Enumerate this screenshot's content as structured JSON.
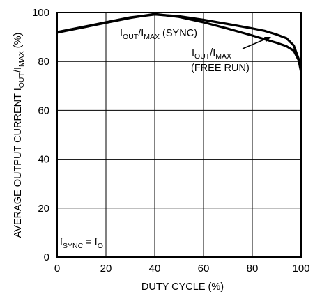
{
  "chart_data": {
    "type": "line",
    "xlabel": "DUTY CYCLE (%)",
    "ylabel": {
      "prefix": "AVERAGE OUTPUT CURRENT I",
      "sub1": "OUT",
      "mid": "/I",
      "sub2": "MAX",
      "suffix": " (%)"
    },
    "xlim": [
      0,
      100
    ],
    "ylim": [
      0,
      100
    ],
    "xticks": [
      "0",
      "20",
      "40",
      "60",
      "80",
      "100"
    ],
    "yticks": [
      "0",
      "20",
      "40",
      "60",
      "80",
      "100"
    ],
    "grid": true,
    "series": [
      {
        "id": "sync",
        "name": "I_OUT/I_MAX (SYNC)",
        "color": "#000000",
        "points": [
          [
            0,
            92
          ],
          [
            10,
            94
          ],
          [
            20,
            96
          ],
          [
            30,
            98
          ],
          [
            40,
            99.2
          ],
          [
            50,
            98.5
          ],
          [
            60,
            97
          ],
          [
            70,
            95.3
          ],
          [
            80,
            93.5
          ],
          [
            85,
            92.5
          ],
          [
            90,
            91
          ],
          [
            94,
            89.5
          ],
          [
            97,
            86.5
          ],
          [
            99,
            81
          ],
          [
            100,
            76
          ]
        ]
      },
      {
        "id": "free_run",
        "name": "I_OUT/I_MAX (FREE RUN)",
        "color": "#000000",
        "points": [
          [
            0,
            91.8
          ],
          [
            10,
            93.8
          ],
          [
            20,
            95.8
          ],
          [
            30,
            97.8
          ],
          [
            40,
            99.4
          ],
          [
            50,
            98.2
          ],
          [
            60,
            96
          ],
          [
            70,
            93.4
          ],
          [
            80,
            90.6
          ],
          [
            85,
            89.1
          ],
          [
            90,
            87.6
          ],
          [
            94,
            86.2
          ],
          [
            97,
            84.4
          ],
          [
            99,
            80.5
          ],
          [
            100,
            75.5
          ]
        ]
      }
    ],
    "annotations": {
      "sync": {
        "pre": "I",
        "sub1": "OUT",
        "mid": "/I",
        "sub2": "MAX",
        "post": " (SYNC)"
      },
      "free_run_line1": {
        "pre": "I",
        "sub1": "OUT",
        "mid": "/I",
        "sub2": "MAX"
      },
      "free_run_line2": "(FREE RUN)",
      "condition": {
        "f": "f",
        "sub1": "SYNC",
        "eq": " = f",
        "sub2": "O"
      }
    }
  }
}
